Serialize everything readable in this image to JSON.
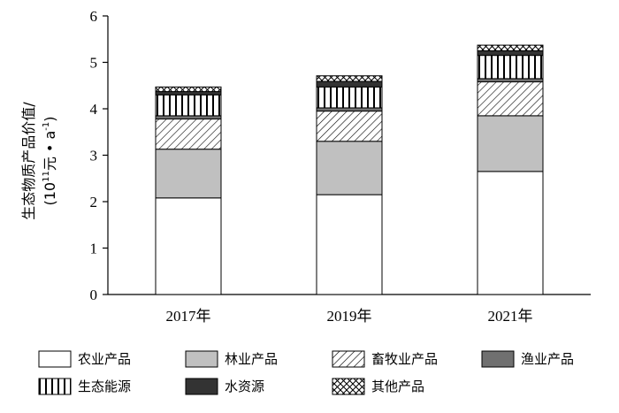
{
  "chart_data": {
    "type": "bar",
    "stacked": true,
    "categories": [
      "2017年",
      "2019年",
      "2021年"
    ],
    "ylabel_line1": "生态物质产品价值/",
    "ylabel_line2_prefix": "(10",
    "ylabel_line2_exp": "11",
    "ylabel_line2_mid": "元 • a",
    "ylabel_line2_exp2": "-1",
    "ylabel_line2_suffix": ")",
    "ylim": [
      0,
      6
    ],
    "yticks": [
      "0",
      "1",
      "2",
      "3",
      "4",
      "5",
      "6"
    ],
    "grid": false,
    "legend_position": "bottom",
    "series": [
      {
        "name": "农业产品",
        "values": [
          2.08,
          2.15,
          2.65
        ],
        "fill": "#ffffff",
        "pattern": "none"
      },
      {
        "name": "林业产品",
        "values": [
          1.05,
          1.15,
          1.2
        ],
        "fill": "#c0c0c0",
        "pattern": "none"
      },
      {
        "name": "畜牧业产品",
        "values": [
          0.65,
          0.65,
          0.73
        ],
        "fill": "#ffffff",
        "pattern": "diagonal"
      },
      {
        "name": "渔业产品",
        "values": [
          0.07,
          0.07,
          0.07
        ],
        "fill": "#707070",
        "pattern": "none"
      },
      {
        "name": "生态能源",
        "values": [
          0.45,
          0.45,
          0.5
        ],
        "fill": "#ffffff",
        "pattern": "vertical"
      },
      {
        "name": "水资源",
        "values": [
          0.07,
          0.12,
          0.1
        ],
        "fill": "#333333",
        "pattern": "none"
      },
      {
        "name": "其他产品",
        "values": [
          0.1,
          0.12,
          0.12
        ],
        "fill": "#ffffff",
        "pattern": "cross"
      }
    ]
  }
}
